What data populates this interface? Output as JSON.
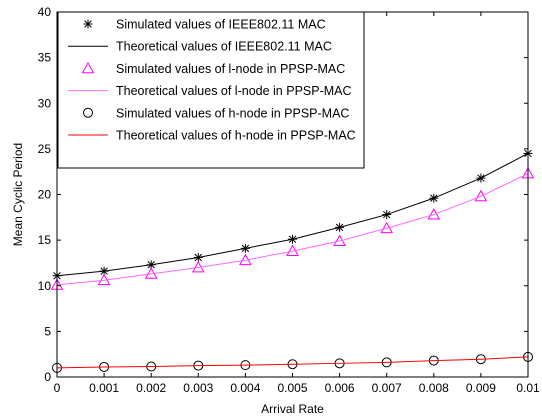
{
  "chart_data": {
    "type": "line",
    "xlabel": "Arrival Rate",
    "ylabel": "Mean Cyclic Period",
    "xlim": [
      0,
      0.01
    ],
    "ylim": [
      0,
      40
    ],
    "xticks": [
      "0",
      "0.001",
      "0.002",
      "0.003",
      "0.004",
      "0.005",
      "0.006",
      "0.007",
      "0.008",
      "0.009",
      "0.01"
    ],
    "yticks": [
      "0",
      "5",
      "10",
      "15",
      "20",
      "25",
      "30",
      "35",
      "40"
    ],
    "grid": false,
    "legend_position": "top-left",
    "x": [
      0,
      0.001,
      0.002,
      0.003,
      0.004,
      0.005,
      0.006,
      0.007,
      0.008,
      0.009,
      0.01
    ],
    "series": [
      {
        "name": "Simulated values of IEEE802.11 MAC",
        "kind": "markers",
        "marker": "asterisk",
        "color": "#000000",
        "values": [
          11.1,
          11.6,
          12.3,
          13.1,
          14.1,
          15.1,
          16.4,
          17.8,
          19.6,
          21.8,
          24.5
        ]
      },
      {
        "name": "Theoretical values of IEEE802.11 MAC",
        "kind": "line",
        "color": "#000000",
        "values": [
          11.1,
          11.6,
          12.3,
          13.1,
          14.1,
          15.1,
          16.4,
          17.8,
          19.6,
          21.8,
          24.5
        ]
      },
      {
        "name": "Simulated values of l-node in PPSP-MAC",
        "kind": "markers",
        "marker": "triangle",
        "color": "#ff00ff",
        "values": [
          10.1,
          10.6,
          11.3,
          12.0,
          12.8,
          13.8,
          14.9,
          16.3,
          17.8,
          19.8,
          22.3
        ]
      },
      {
        "name": "Theoretical values of l-node in PPSP-MAC",
        "kind": "line",
        "color": "#ff66ff",
        "values": [
          10.1,
          10.6,
          11.3,
          12.0,
          12.8,
          13.8,
          14.9,
          16.3,
          17.8,
          19.8,
          22.3
        ]
      },
      {
        "name": "Simulated values of h-node in PPSP-MAC",
        "kind": "markers",
        "marker": "circle",
        "color": "#000000",
        "values": [
          1.0,
          1.1,
          1.15,
          1.25,
          1.3,
          1.4,
          1.5,
          1.6,
          1.8,
          1.95,
          2.2
        ]
      },
      {
        "name": "Theoretical values of h-node in PPSP-MAC",
        "kind": "line",
        "color": "#ff0000",
        "values": [
          1.0,
          1.1,
          1.15,
          1.25,
          1.3,
          1.4,
          1.5,
          1.6,
          1.8,
          1.95,
          2.2
        ]
      }
    ]
  }
}
